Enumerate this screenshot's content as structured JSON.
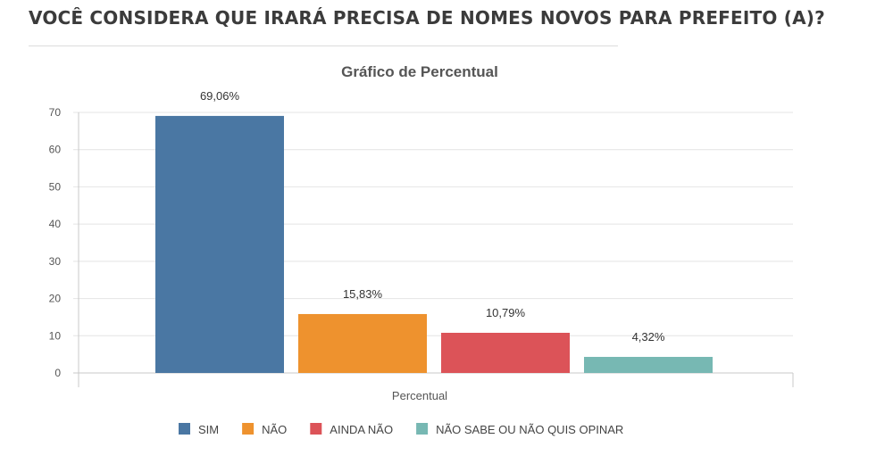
{
  "page": {
    "question": "VOCÊ CONSIDERA QUE IRARÁ PRECISA DE NOMES NOVOS PARA PREFEITO (A)?"
  },
  "chart_data": {
    "type": "bar",
    "title": "Gráfico de Percentual",
    "xlabel": "Percentual",
    "ylabel": "",
    "ylim": [
      0,
      70
    ],
    "yticks": [
      0,
      10,
      20,
      30,
      40,
      50,
      60,
      70
    ],
    "grid": true,
    "legend_position": "bottom",
    "series": [
      {
        "name": "SIM",
        "value": 69.06,
        "label": "69,06%",
        "color": "#4a77a3"
      },
      {
        "name": "NÃO",
        "value": 15.83,
        "label": "15,83%",
        "color": "#ee922e"
      },
      {
        "name": "AINDA NÃO",
        "value": 10.79,
        "label": "10,79%",
        "color": "#dc5358"
      },
      {
        "name": "NÃO SABE OU NÃO QUIS OPINAR",
        "value": 4.32,
        "label": "4,32%",
        "color": "#77b8b3"
      }
    ]
  }
}
